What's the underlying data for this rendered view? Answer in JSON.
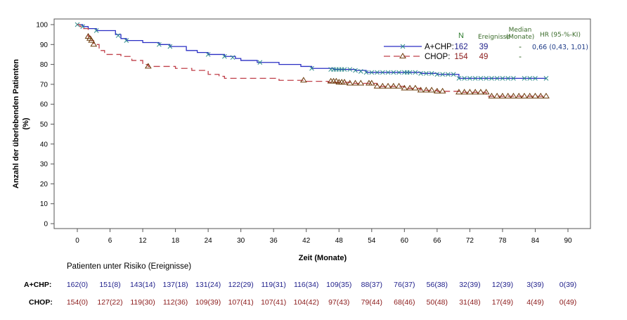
{
  "chart_data": {
    "type": "line",
    "subtype": "kaplan-meier",
    "title": "",
    "xlabel": "Zeit (Monate)",
    "ylabel": "Anzahl der überlebenden Patienten",
    "ylabel_unit": "(%)",
    "xlim": [
      -4,
      94
    ],
    "ylim": [
      -1,
      103
    ],
    "x_ticks": [
      0,
      6,
      12,
      18,
      24,
      30,
      36,
      42,
      48,
      54,
      60,
      66,
      72,
      78,
      84,
      90
    ],
    "y_ticks": [
      0,
      10,
      20,
      30,
      40,
      50,
      60,
      70,
      80,
      90,
      100
    ],
    "grid": false,
    "legend": {
      "placement": "top-right",
      "headers": {
        "n": "N",
        "events": "Ereignisse",
        "median_line1": "Median",
        "median_line2": "(Monate)",
        "hr": "HR (95-%-KI)"
      },
      "hr_value": "0,66 (0,43, 1,01)"
    },
    "series": [
      {
        "name": "A+CHP:",
        "n": "162",
        "events": "39",
        "median": "-",
        "color": "#2a2fc4",
        "marker_color": "#2e8b8b",
        "marker": "x",
        "line_style": "solid",
        "steps": [
          [
            0,
            100
          ],
          [
            1,
            99
          ],
          [
            2,
            98
          ],
          [
            3.5,
            97
          ],
          [
            7,
            95
          ],
          [
            8,
            93
          ],
          [
            9,
            92
          ],
          [
            12,
            91
          ],
          [
            15,
            90
          ],
          [
            17,
            89
          ],
          [
            20,
            87
          ],
          [
            22,
            86
          ],
          [
            24,
            85
          ],
          [
            27,
            84
          ],
          [
            29,
            83
          ],
          [
            30,
            82
          ],
          [
            33,
            81
          ],
          [
            37,
            80
          ],
          [
            41,
            79
          ],
          [
            43,
            78
          ],
          [
            47,
            77.5
          ],
          [
            51,
            77
          ],
          [
            53,
            76
          ],
          [
            63,
            75.5
          ],
          [
            66,
            75
          ],
          [
            70,
            73
          ],
          [
            86,
            73
          ]
        ],
        "censored": [
          [
            0,
            100
          ],
          [
            1,
            99
          ],
          [
            3.5,
            97
          ],
          [
            7.5,
            94.5
          ],
          [
            9,
            92
          ],
          [
            15,
            90
          ],
          [
            17,
            89
          ],
          [
            24,
            85
          ],
          [
            27,
            84
          ],
          [
            28.5,
            83.5
          ],
          [
            33.5,
            81
          ],
          [
            43,
            78
          ],
          [
            46.5,
            77.5
          ],
          [
            47,
            77.5
          ],
          [
            47.5,
            77.5
          ],
          [
            48,
            77.5
          ],
          [
            48.5,
            77.5
          ],
          [
            49,
            77.5
          ],
          [
            50,
            77.5
          ],
          [
            51,
            77
          ],
          [
            52,
            76.5
          ],
          [
            53,
            76
          ],
          [
            54,
            76
          ],
          [
            55,
            76
          ],
          [
            56,
            76
          ],
          [
            57,
            76
          ],
          [
            58,
            76
          ],
          [
            59,
            76
          ],
          [
            60,
            76
          ],
          [
            60.5,
            76
          ],
          [
            61,
            76
          ],
          [
            62,
            76
          ],
          [
            63,
            75.5
          ],
          [
            64,
            75.5
          ],
          [
            65,
            75.5
          ],
          [
            66,
            75
          ],
          [
            67,
            75
          ],
          [
            68,
            75
          ],
          [
            69,
            75
          ],
          [
            70,
            73
          ],
          [
            71,
            73
          ],
          [
            72,
            73
          ],
          [
            73,
            73
          ],
          [
            74,
            73
          ],
          [
            75,
            73
          ],
          [
            76,
            73
          ],
          [
            77,
            73
          ],
          [
            78,
            73
          ],
          [
            79,
            73
          ],
          [
            80,
            73
          ],
          [
            82,
            73
          ],
          [
            83,
            73
          ],
          [
            84,
            73
          ],
          [
            86,
            73
          ]
        ]
      },
      {
        "name": "CHOP:",
        "n": "154",
        "events": "49",
        "median": "-",
        "color": "#c0404a",
        "marker_color": "#6b3a0a",
        "marker": "triangle",
        "line_style": "dashed",
        "steps": [
          [
            0,
            100
          ],
          [
            0.5,
            99
          ],
          [
            1,
            98
          ],
          [
            2,
            94
          ],
          [
            2.5,
            92
          ],
          [
            3,
            90
          ],
          [
            4,
            87
          ],
          [
            5,
            85
          ],
          [
            8,
            84
          ],
          [
            10,
            82
          ],
          [
            12,
            80
          ],
          [
            13,
            79
          ],
          [
            18,
            78
          ],
          [
            21,
            77
          ],
          [
            24,
            75
          ],
          [
            26,
            74
          ],
          [
            27,
            73
          ],
          [
            37,
            72
          ],
          [
            42,
            71.5
          ],
          [
            46,
            71
          ],
          [
            50,
            70.5
          ],
          [
            55,
            69
          ],
          [
            60,
            68
          ],
          [
            63,
            67
          ],
          [
            66,
            66.5
          ],
          [
            70,
            66
          ],
          [
            75,
            64
          ],
          [
            86,
            64
          ]
        ],
        "censored": [
          [
            2,
            94
          ],
          [
            2.3,
            93
          ],
          [
            2.6,
            92
          ],
          [
            3,
            90
          ],
          [
            13,
            79
          ],
          [
            41.5,
            72
          ],
          [
            46.5,
            71.5
          ],
          [
            47,
            71.5
          ],
          [
            47.5,
            71.5
          ],
          [
            48,
            71
          ],
          [
            48.5,
            71
          ],
          [
            49,
            71
          ],
          [
            50,
            70.5
          ],
          [
            51,
            70.5
          ],
          [
            52,
            70.5
          ],
          [
            53.5,
            70.5
          ],
          [
            54,
            70.5
          ],
          [
            55,
            69
          ],
          [
            56,
            69
          ],
          [
            57,
            69
          ],
          [
            58,
            69
          ],
          [
            59,
            69
          ],
          [
            60,
            68
          ],
          [
            61,
            68
          ],
          [
            62,
            68
          ],
          [
            63,
            67
          ],
          [
            64,
            67
          ],
          [
            65,
            67
          ],
          [
            66,
            66.5
          ],
          [
            67,
            66.5
          ],
          [
            70,
            66
          ],
          [
            71,
            66
          ],
          [
            72,
            66
          ],
          [
            73,
            66
          ],
          [
            74,
            66
          ],
          [
            75,
            66
          ],
          [
            76,
            64
          ],
          [
            77,
            64
          ],
          [
            78,
            64
          ],
          [
            79,
            64
          ],
          [
            80,
            64
          ],
          [
            81,
            64
          ],
          [
            82,
            64
          ],
          [
            83,
            64
          ],
          [
            84,
            64
          ],
          [
            85,
            64
          ],
          [
            86,
            64
          ]
        ]
      }
    ],
    "risk_table": {
      "title": "Patienten unter Risiko (Ereignisse)",
      "times": [
        0,
        6,
        12,
        18,
        24,
        30,
        36,
        42,
        48,
        54,
        60,
        66,
        72,
        78,
        84,
        90
      ],
      "rows": [
        {
          "label": "A+CHP:",
          "color": "#1f1f8a",
          "values": [
            "162(0)",
            "151(8)",
            "143(14)",
            "137(18)",
            "131(24)",
            "122(29)",
            "119(31)",
            "116(34)",
            "109(35)",
            "88(37)",
            "76(37)",
            "56(38)",
            "32(39)",
            "12(39)",
            "3(39)",
            "0(39)"
          ]
        },
        {
          "label": "CHOP:",
          "color": "#8b1a1a",
          "values": [
            "154(0)",
            "127(22)",
            "119(30)",
            "112(36)",
            "109(39)",
            "107(41)",
            "107(41)",
            "104(42)",
            "97(43)",
            "79(44)",
            "68(46)",
            "50(48)",
            "31(48)",
            "17(49)",
            "4(49)",
            "0(49)"
          ]
        }
      ]
    }
  }
}
